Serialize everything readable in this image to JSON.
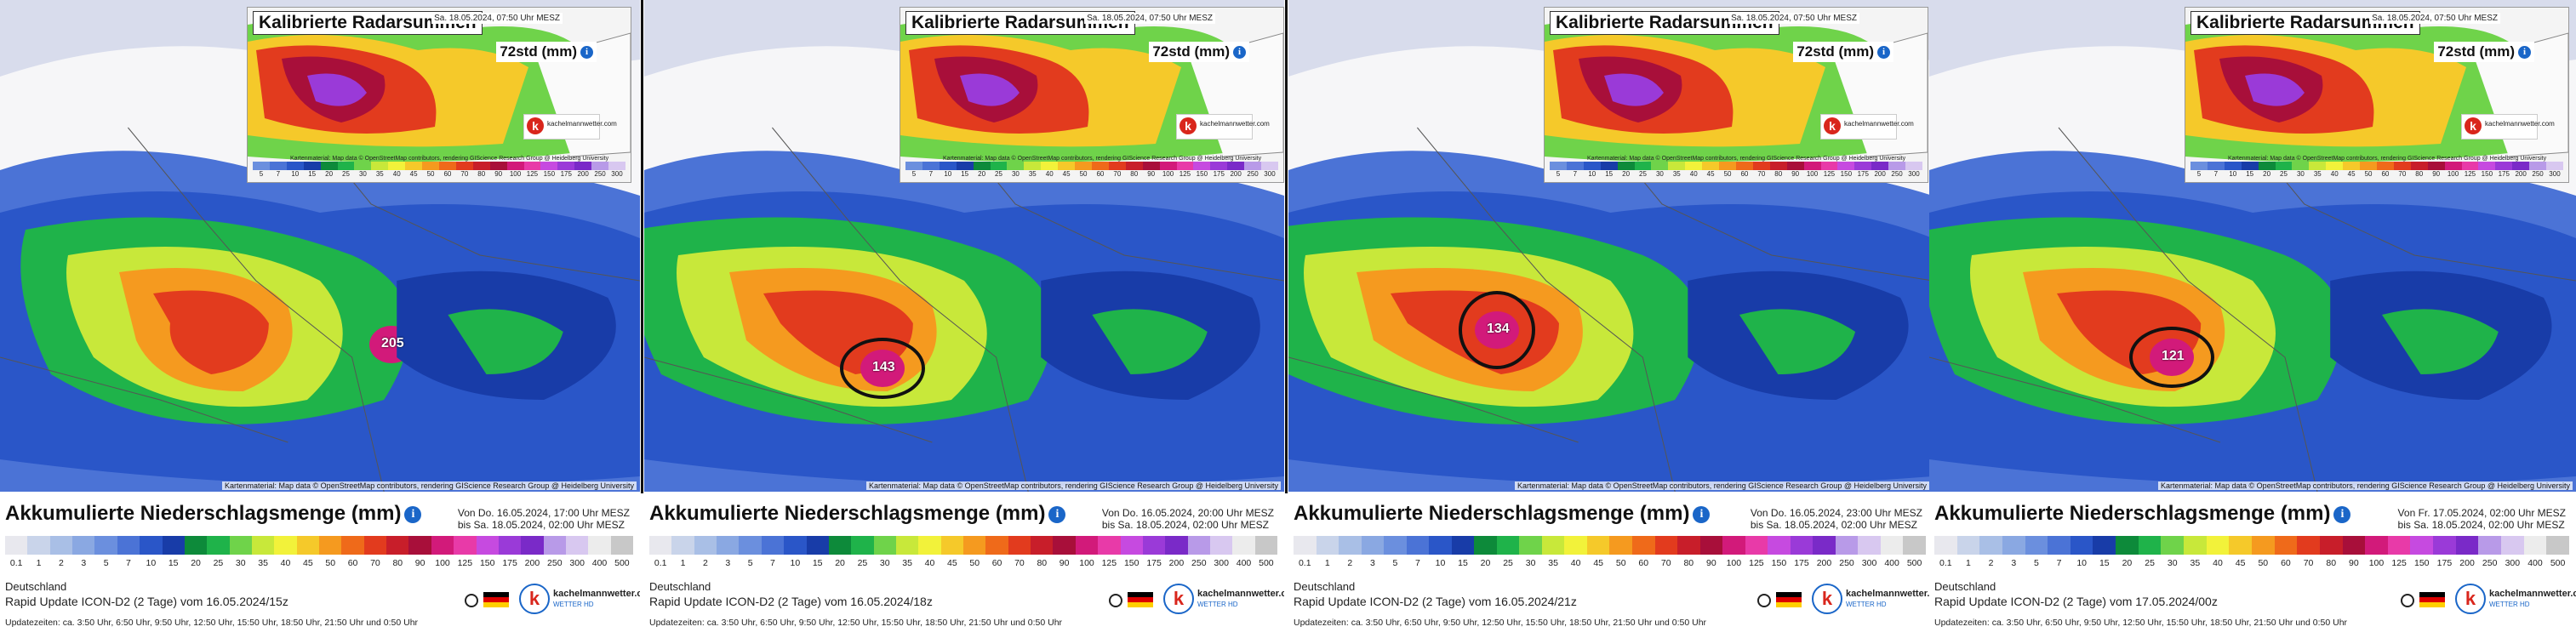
{
  "colors": {
    "scale": [
      "#e8e8ee",
      "#c9d4ea",
      "#a9bfe6",
      "#8aa8e2",
      "#6b8fde",
      "#4b73d6",
      "#2a56c8",
      "#183ca8",
      "#0d8a3a",
      "#1fb34a",
      "#6fd34a",
      "#c8e83a",
      "#f2f23a",
      "#f5c92a",
      "#f59a1f",
      "#ef6a1a",
      "#e23b1e",
      "#c81e2a",
      "#a80f3a",
      "#d21a7a",
      "#e83aa8",
      "#c64ae0",
      "#9a3ad8",
      "#7a2ac8",
      "#b89ae8",
      "#d8c8f0",
      "#ececec",
      "#c8c8c8"
    ],
    "ocean": "#e8eaf4",
    "land": "#f6f6f8",
    "circle": "#111111"
  },
  "panels": [
    {
      "inset": {
        "title": "Kalibrierte Radarsummen",
        "date": "Sa. 18.05.2024, 07:50 Uhr MESZ",
        "hours": "72std (mm)",
        "logo": "kachelmannwetter.com",
        "credit": "Kartenmaterial: Map data © OpenStreetMap contributors, rendering GIScience Research Group @ Heidelberg University"
      },
      "map_label": "205",
      "circled": false,
      "credit": "Kartenmaterial: Map data © OpenStreetMap contributors, rendering GIScience Research Group @ Heidelberg University",
      "footer": {
        "title": "Akkumulierte Niederschlagsmenge (mm)",
        "from": "Von Do. 16.05.2024, 17:00 Uhr MESZ",
        "to": "bis Sa. 18.05.2024, 02:00 Uhr MESZ",
        "region": "Deutschland",
        "model": "Rapid Update ICON-D2 (2 Tage)  vom 16.05.2024/15z",
        "update": "Updatezeiten: ca. 3:50 Uhr, 6:50 Uhr, 9:50 Uhr, 12:50 Uhr, 15:50 Uhr, 18:50 Uhr, 21:50 Uhr und 0:50 Uhr",
        "logo": "kachelmannwetter.com",
        "logo_sub": "WETTER HD"
      }
    },
    {
      "inset": {
        "title": "Kalibrierte Radarsummen",
        "date": "Sa. 18.05.2024, 07:50 Uhr MESZ",
        "hours": "72std (mm)",
        "logo": "kachelmannwetter.com",
        "credit": "Kartenmaterial: Map data © OpenStreetMap contributors, rendering GIScience Research Group @ Heidelberg University"
      },
      "map_label": "143",
      "circled": true,
      "credit": "Kartenmaterial: Map data © OpenStreetMap contributors, rendering GIScience Research Group @ Heidelberg University",
      "footer": {
        "title": "Akkumulierte Niederschlagsmenge (mm)",
        "from": "Von Do. 16.05.2024, 20:00 Uhr MESZ",
        "to": "bis Sa. 18.05.2024, 02:00 Uhr MESZ",
        "region": "Deutschland",
        "model": "Rapid Update ICON-D2 (2 Tage)  vom 16.05.2024/18z",
        "update": "Updatezeiten: ca. 3:50 Uhr, 6:50 Uhr, 9:50 Uhr, 12:50 Uhr, 15:50 Uhr, 18:50 Uhr, 21:50 Uhr und 0:50 Uhr",
        "logo": "kachelmannwetter.com",
        "logo_sub": "WETTER HD"
      }
    },
    {
      "inset": {
        "title": "Kalibrierte Radarsummen",
        "date": "Sa. 18.05.2024, 07:50 Uhr MESZ",
        "hours": "72std (mm)",
        "logo": "kachelmannwetter.com",
        "credit": "Kartenmaterial: Map data © OpenStreetMap contributors, rendering GIScience Research Group @ Heidelberg University"
      },
      "map_label": "134",
      "circled": true,
      "credit": "Kartenmaterial: Map data © OpenStreetMap contributors, rendering GIScience Research Group @ Heidelberg University",
      "footer": {
        "title": "Akkumulierte Niederschlagsmenge (mm)",
        "from": "Von Do. 16.05.2024, 23:00 Uhr MESZ",
        "to": "bis Sa. 18.05.2024, 02:00 Uhr MESZ",
        "region": "Deutschland",
        "model": "Rapid Update ICON-D2 (2 Tage)  vom 16.05.2024/21z",
        "update": "Updatezeiten: ca. 3:50 Uhr, 6:50 Uhr, 9:50 Uhr, 12:50 Uhr, 15:50 Uhr, 18:50 Uhr, 21:50 Uhr und 0:50 Uhr",
        "logo": "kachelmannwetter.com",
        "logo_sub": "WETTER HD"
      }
    },
    {
      "inset": {
        "title": "Kalibrierte Radarsummen",
        "date": "Sa. 18.05.2024, 07:50 Uhr MESZ",
        "hours": "72std (mm)",
        "logo": "kachelmannwetter.com",
        "credit": "Kartenmaterial: Map data © OpenStreetMap contributors, rendering GIScience Research Group @ Heidelberg University"
      },
      "map_label": "121",
      "circled": true,
      "credit": "Kartenmaterial: Map data © OpenStreetMap contributors, rendering GIScience Research Group @ Heidelberg University",
      "footer": {
        "title": "Akkumulierte Niederschlagsmenge (mm)",
        "from": "Von Fr. 17.05.2024, 02:00 Uhr MESZ",
        "to": "bis Sa. 18.05.2024, 02:00 Uhr MESZ",
        "region": "Deutschland",
        "model": "Rapid Update ICON-D2 (2 Tage)  vom 17.05.2024/00z",
        "update": "Updatezeiten: ca. 3:50 Uhr, 6:50 Uhr, 9:50 Uhr, 12:50 Uhr, 15:50 Uhr, 18:50 Uhr, 21:50 Uhr und 0:50 Uhr",
        "logo": "kachelmannwetter.com",
        "logo_sub": "WETTER HD"
      }
    }
  ],
  "scale_labels": [
    "0.1",
    "1",
    "2",
    "3",
    "5",
    "7",
    "10",
    "15",
    "20",
    "25",
    "30",
    "35",
    "40",
    "45",
    "50",
    "60",
    "70",
    "80",
    "90",
    "100",
    "125",
    "150",
    "175",
    "200",
    "250",
    "300",
    "400",
    "500"
  ],
  "inset_scale_labels": [
    "5",
    "7",
    "10",
    "15",
    "20",
    "25",
    "30",
    "35",
    "40",
    "45",
    "50",
    "60",
    "70",
    "80",
    "90",
    "100",
    "125",
    "150",
    "175",
    "200",
    "250",
    "300"
  ],
  "info_icon": "info-icon"
}
